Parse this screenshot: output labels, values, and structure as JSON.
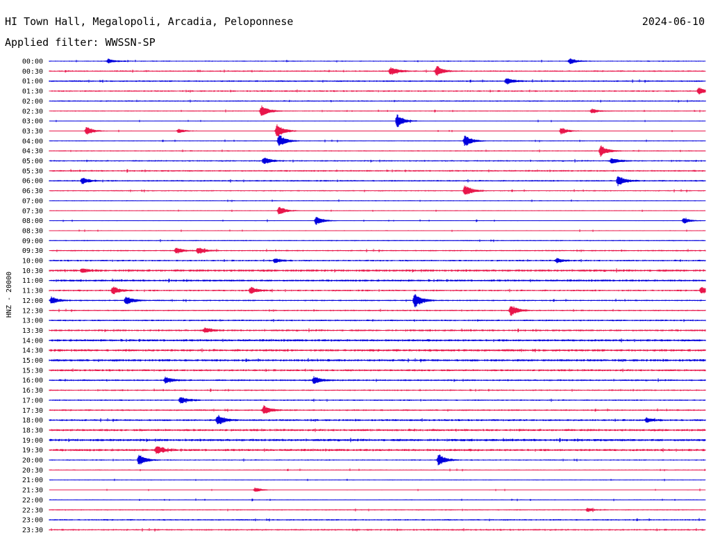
{
  "header": {
    "station": "HI Town Hall, Megalopoli, Arcadia, Peloponnese",
    "date": "2024-06-10",
    "filter": "Applied filter: WWSSN-SP"
  },
  "chart_data": {
    "type": "line",
    "ylabel": "HNZ - 20000",
    "row_times": [
      "00:00",
      "00:30",
      "01:00",
      "01:30",
      "02:00",
      "02:30",
      "03:00",
      "03:30",
      "04:00",
      "04:30",
      "05:00",
      "05:30",
      "06:00",
      "06:30",
      "07:00",
      "07:30",
      "08:00",
      "08:30",
      "09:00",
      "09:30",
      "10:00",
      "10:30",
      "11:00",
      "11:30",
      "12:00",
      "12:30",
      "13:00",
      "13:30",
      "14:00",
      "14:30",
      "15:00",
      "15:30",
      "16:00",
      "16:30",
      "17:00",
      "17:30",
      "18:00",
      "18:30",
      "19:00",
      "19:30",
      "20:00",
      "20:30",
      "21:00",
      "21:30",
      "22:00",
      "22:30",
      "23:00",
      "23:30"
    ],
    "series_colors": [
      "#0000dd",
      "#e8164a"
    ],
    "x_range_minutes": [
      0,
      30
    ],
    "events": [
      {
        "row": 0,
        "minute": 2.7,
        "amp": 0.3
      },
      {
        "row": 0,
        "minute": 23.8,
        "amp": 0.4
      },
      {
        "row": 1,
        "minute": 15.6,
        "amp": 0.55
      },
      {
        "row": 1,
        "minute": 17.7,
        "amp": 0.7
      },
      {
        "row": 2,
        "minute": 20.9,
        "amp": 0.45
      },
      {
        "row": 3,
        "minute": 29.7,
        "amp": 0.5
      },
      {
        "row": 5,
        "minute": 9.7,
        "amp": 0.8
      },
      {
        "row": 5,
        "minute": 24.8,
        "amp": 0.3
      },
      {
        "row": 6,
        "minute": 15.9,
        "amp": 0.9
      },
      {
        "row": 7,
        "minute": 1.7,
        "amp": 0.6
      },
      {
        "row": 7,
        "minute": 5.9,
        "amp": 0.3
      },
      {
        "row": 7,
        "minute": 10.4,
        "amp": 1.0
      },
      {
        "row": 7,
        "minute": 23.4,
        "amp": 0.5
      },
      {
        "row": 8,
        "minute": 10.5,
        "amp": 0.9
      },
      {
        "row": 8,
        "minute": 19.0,
        "amp": 0.8
      },
      {
        "row": 9,
        "minute": 25.2,
        "amp": 0.75
      },
      {
        "row": 10,
        "minute": 9.8,
        "amp": 0.45
      },
      {
        "row": 10,
        "minute": 25.7,
        "amp": 0.4
      },
      {
        "row": 12,
        "minute": 1.5,
        "amp": 0.45
      },
      {
        "row": 12,
        "minute": 26.0,
        "amp": 0.7
      },
      {
        "row": 13,
        "minute": 19.0,
        "amp": 0.75
      },
      {
        "row": 15,
        "minute": 10.5,
        "amp": 0.6
      },
      {
        "row": 16,
        "minute": 12.2,
        "amp": 0.6
      },
      {
        "row": 16,
        "minute": 29.0,
        "amp": 0.4
      },
      {
        "row": 19,
        "minute": 5.8,
        "amp": 0.4
      },
      {
        "row": 19,
        "minute": 6.8,
        "amp": 0.45
      },
      {
        "row": 20,
        "minute": 10.3,
        "amp": 0.3
      },
      {
        "row": 20,
        "minute": 23.2,
        "amp": 0.3
      },
      {
        "row": 21,
        "minute": 1.5,
        "amp": 0.25
      },
      {
        "row": 23,
        "minute": 2.9,
        "amp": 0.55
      },
      {
        "row": 23,
        "minute": 9.2,
        "amp": 0.45
      },
      {
        "row": 23,
        "minute": 29.8,
        "amp": 0.45
      },
      {
        "row": 24,
        "minute": 0.1,
        "amp": 0.5
      },
      {
        "row": 24,
        "minute": 3.5,
        "amp": 0.6
      },
      {
        "row": 24,
        "minute": 16.7,
        "amp": 1.0
      },
      {
        "row": 25,
        "minute": 21.1,
        "amp": 0.75
      },
      {
        "row": 27,
        "minute": 7.1,
        "amp": 0.35
      },
      {
        "row": 32,
        "minute": 5.3,
        "amp": 0.4
      },
      {
        "row": 32,
        "minute": 12.1,
        "amp": 0.5
      },
      {
        "row": 34,
        "minute": 6.0,
        "amp": 0.5
      },
      {
        "row": 35,
        "minute": 9.8,
        "amp": 0.6
      },
      {
        "row": 36,
        "minute": 7.7,
        "amp": 0.7
      },
      {
        "row": 36,
        "minute": 27.3,
        "amp": 0.3
      },
      {
        "row": 39,
        "minute": 4.9,
        "amp": 0.6
      },
      {
        "row": 40,
        "minute": 4.1,
        "amp": 0.75
      },
      {
        "row": 40,
        "minute": 17.8,
        "amp": 0.8
      },
      {
        "row": 43,
        "minute": 9.4,
        "amp": 0.3
      },
      {
        "row": 45,
        "minute": 24.6,
        "amp": 0.25
      }
    ]
  }
}
